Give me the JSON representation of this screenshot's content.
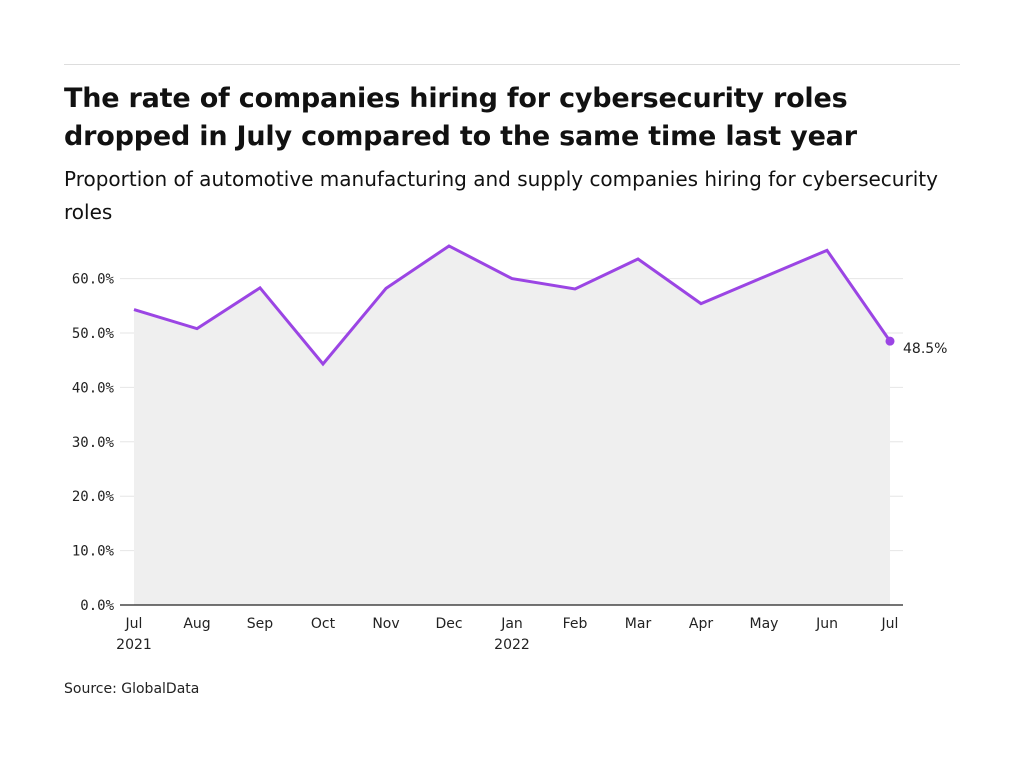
{
  "title": "The rate of companies hiring for cybersecurity roles dropped in July compared to the same time last year",
  "subtitle": "Proportion of automotive manufacturing and supply companies hiring for cybersecurity roles",
  "source": "Source: GlobalData",
  "colors": {
    "line": "#9b45e4",
    "area": "#efefef",
    "grid": "#e6e6e6",
    "axis": "#222222"
  },
  "chart_data": {
    "type": "line",
    "categories": [
      "Jul",
      "Aug",
      "Sep",
      "Oct",
      "Nov",
      "Dec",
      "Jan",
      "Feb",
      "Mar",
      "Apr",
      "May",
      "Jun",
      "Jul"
    ],
    "category_sublabels": [
      "2021",
      "",
      "",
      "",
      "",
      "",
      "2022",
      "",
      "",
      "",
      "",
      "",
      ""
    ],
    "values": [
      54.3,
      50.8,
      58.3,
      44.3,
      58.2,
      66.0,
      60.0,
      58.1,
      63.6,
      55.4,
      60.3,
      65.2,
      48.5
    ],
    "ylim": [
      0,
      70
    ],
    "yticks": [
      0,
      10,
      20,
      30,
      40,
      50,
      60
    ],
    "ytick_labels": [
      "0.0%",
      "10.0%",
      "20.0%",
      "30.0%",
      "40.0%",
      "50.0%",
      "60.0%"
    ],
    "end_label": "48.5%",
    "grid": true,
    "area_fill": true,
    "title": "The rate of companies hiring for cybersecurity roles dropped in July compared to the same time last year",
    "subtitle": "Proportion of automotive manufacturing and supply companies hiring for cybersecurity roles"
  }
}
